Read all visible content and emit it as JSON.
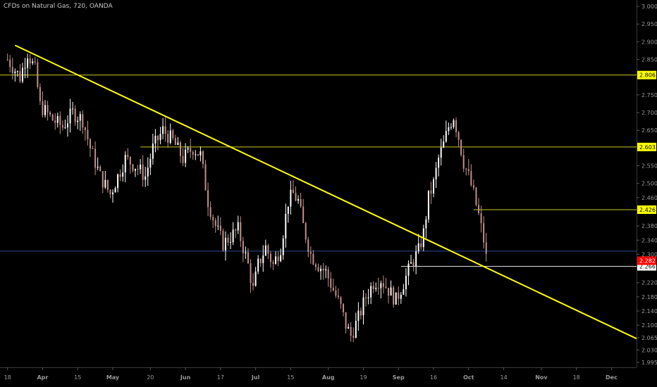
{
  "header": {
    "title": "CFDs on Natural Gas, 720, OANDA"
  },
  "chart_data": {
    "type": "candlestick",
    "symbol": "CFDs on Natural Gas",
    "interval": "720",
    "source": "OANDA",
    "ylim": [
      1.97,
      3.0
    ],
    "y_ticks": [
      {
        "value": 3.0,
        "label": "3.000"
      },
      {
        "value": 2.95,
        "label": "2.950"
      },
      {
        "value": 2.9,
        "label": "2.900"
      },
      {
        "value": 2.85,
        "label": "2.850"
      },
      {
        "value": 2.75,
        "label": "2.750"
      },
      {
        "value": 2.7,
        "label": "2.700"
      },
      {
        "value": 2.65,
        "label": "2.650"
      },
      {
        "value": 2.55,
        "label": "2.550"
      },
      {
        "value": 2.5,
        "label": "2.500"
      },
      {
        "value": 2.46,
        "label": "2.460"
      },
      {
        "value": 2.38,
        "label": "2.380"
      },
      {
        "value": 2.34,
        "label": "2.340"
      },
      {
        "value": 2.3,
        "label": "2.300"
      },
      {
        "value": 2.22,
        "label": "2.220"
      },
      {
        "value": 2.18,
        "label": "2.180"
      },
      {
        "value": 2.14,
        "label": "2.140"
      },
      {
        "value": 2.1,
        "label": "2.100"
      },
      {
        "value": 2.065,
        "label": "2.065"
      },
      {
        "value": 2.03,
        "label": "2.030"
      },
      {
        "value": 1.995,
        "label": "1.995"
      }
    ],
    "x_ticks": [
      {
        "label": "18",
        "bold": false
      },
      {
        "label": "Apr",
        "bold": true
      },
      {
        "label": "15",
        "bold": false
      },
      {
        "label": "May",
        "bold": true
      },
      {
        "label": "20",
        "bold": false
      },
      {
        "label": "Jun",
        "bold": true
      },
      {
        "label": "17",
        "bold": false
      },
      {
        "label": "Jul",
        "bold": true
      },
      {
        "label": "15",
        "bold": false
      },
      {
        "label": "Aug",
        "bold": true
      },
      {
        "label": "19",
        "bold": false
      },
      {
        "label": "Sep",
        "bold": true
      },
      {
        "label": "16",
        "bold": false
      },
      {
        "label": "Oct",
        "bold": true
      },
      {
        "label": "14",
        "bold": false
      },
      {
        "label": "Nov",
        "bold": true
      },
      {
        "label": "18",
        "bold": false
      },
      {
        "label": "Dec",
        "bold": true
      }
    ],
    "x_tick_slots": [
      0,
      14,
      28,
      42,
      57,
      71,
      85,
      99,
      113,
      128,
      142,
      156,
      170,
      184,
      198,
      213,
      227,
      241
    ],
    "x_slot_range": [
      -3,
      251
    ],
    "horizontal_levels": [
      {
        "value": 2.806,
        "label": "2.806",
        "color": "#c8c81e",
        "badge_bg": "#ffff00",
        "badge_fg": "#000000",
        "x_start": -3
      },
      {
        "value": 2.603,
        "label": "2.603",
        "color": "#c8c81e",
        "badge_bg": "#ffff00",
        "badge_fg": "#000000",
        "x_start": 53
      },
      {
        "value": 2.426,
        "label": "2.426",
        "color": "#c8c81e",
        "badge_bg": "#ffff00",
        "badge_fg": "#000000",
        "x_start": 186
      },
      {
        "value": 2.266,
        "label": "2.266",
        "color": "#dddddd",
        "badge_bg": "#ffffff",
        "badge_fg": "#000000",
        "x_start": 157
      }
    ],
    "current_price": {
      "value": 2.282,
      "label": "2.282",
      "line_value": 2.309,
      "line_color": "#2a4a8c",
      "badge_bg": "#ff0000",
      "badge_fg": "#ffffff"
    },
    "trendline": {
      "color": "#ffff00",
      "start": {
        "slot": 3,
        "value": 2.89
      },
      "end": {
        "slot": 251,
        "value": 2.062
      }
    },
    "price_path": [
      [
        0,
        2.85
      ],
      [
        5,
        2.8
      ],
      [
        8,
        2.87
      ],
      [
        11,
        2.82
      ],
      [
        13,
        2.72
      ],
      [
        18,
        2.68
      ],
      [
        22,
        2.66
      ],
      [
        26,
        2.7
      ],
      [
        30,
        2.68
      ],
      [
        33,
        2.6
      ],
      [
        37,
        2.52
      ],
      [
        41,
        2.47
      ],
      [
        44,
        2.52
      ],
      [
        47,
        2.57
      ],
      [
        51,
        2.55
      ],
      [
        55,
        2.52
      ],
      [
        58,
        2.6
      ],
      [
        62,
        2.65
      ],
      [
        66,
        2.62
      ],
      [
        70,
        2.57
      ],
      [
        74,
        2.6
      ],
      [
        77,
        2.58
      ],
      [
        80,
        2.45
      ],
      [
        83,
        2.38
      ],
      [
        86,
        2.33
      ],
      [
        89,
        2.35
      ],
      [
        92,
        2.37
      ],
      [
        94,
        2.32
      ],
      [
        96,
        2.27
      ],
      [
        98,
        2.2
      ],
      [
        100,
        2.27
      ],
      [
        103,
        2.32
      ],
      [
        106,
        2.27
      ],
      [
        109,
        2.32
      ],
      [
        112,
        2.45
      ],
      [
        114,
        2.47
      ],
      [
        116,
        2.45
      ],
      [
        118,
        2.38
      ],
      [
        121,
        2.3
      ],
      [
        124,
        2.27
      ],
      [
        127,
        2.25
      ],
      [
        130,
        2.2
      ],
      [
        133,
        2.15
      ],
      [
        135,
        2.1
      ],
      [
        137,
        2.07
      ],
      [
        140,
        2.12
      ],
      [
        143,
        2.18
      ],
      [
        146,
        2.22
      ],
      [
        149,
        2.23
      ],
      [
        152,
        2.2
      ],
      [
        155,
        2.17
      ],
      [
        158,
        2.22
      ],
      [
        161,
        2.27
      ],
      [
        164,
        2.31
      ],
      [
        166,
        2.36
      ],
      [
        168,
        2.46
      ],
      [
        170,
        2.5
      ],
      [
        172,
        2.57
      ],
      [
        174,
        2.61
      ],
      [
        176,
        2.66
      ],
      [
        178,
        2.69
      ],
      [
        180,
        2.63
      ],
      [
        182,
        2.56
      ],
      [
        184,
        2.52
      ],
      [
        186,
        2.47
      ],
      [
        188,
        2.41
      ],
      [
        190,
        2.34
      ],
      [
        191,
        2.29
      ]
    ],
    "candle_colors": {
      "up": "#ffffff",
      "down": "#c0908c"
    }
  }
}
